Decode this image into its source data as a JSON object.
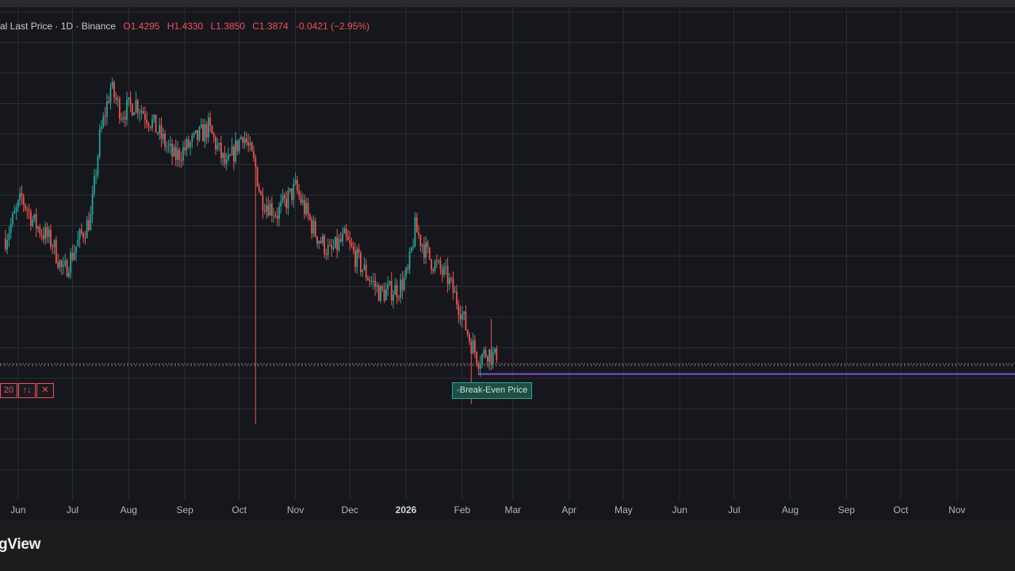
{
  "legend": {
    "title": "al Last Price · 1D · Binance",
    "open": "O1.4295",
    "high": "H1.4330",
    "low": "L1.3850",
    "close": "C1.3874",
    "change": "-0.0421 (−2.95%)"
  },
  "order_line": {
    "qty_label": "20",
    "reverse_label": "↑↓",
    "close_label": "✕",
    "label": "-Break-Even Price"
  },
  "footer": {
    "brand": "gView"
  },
  "colors": {
    "background": "#16171c",
    "up": "#26a69a",
    "down": "#ef5350",
    "order_line": "#ef4f61",
    "bep_line": "#26a69a",
    "purple_line": "#7e4fd6",
    "grid": "#2a2d35"
  },
  "chart_data": {
    "type": "candlestick",
    "interval": "1D",
    "x_tick_labels": [
      "Jun",
      "Jul",
      "Aug",
      "Sep",
      "Oct",
      "Nov",
      "Dec",
      "2026",
      "Feb",
      "Mar",
      "Apr",
      "May",
      "Jun",
      "Jul",
      "Aug",
      "Sep",
      "Oct",
      "Nov"
    ],
    "x_tick_months": [
      "2025-06",
      "2025-07",
      "2025-08",
      "2025-09",
      "2025-10",
      "2025-11",
      "2025-12",
      "2026-01",
      "2026-02",
      "2026-03",
      "2026-04",
      "2026-05",
      "2026-06",
      "2026-07",
      "2026-08",
      "2026-09",
      "2026-10",
      "2026-11"
    ],
    "bold_tick": "2026",
    "grid": true,
    "last_close": 1.3874,
    "break_even_price": 1.35,
    "lower_level": 1.25,
    "trend_points": [
      {
        "date": "2025-05-25",
        "price": 2.6
      },
      {
        "date": "2025-06-03",
        "price": 3.0
      },
      {
        "date": "2025-06-10",
        "price": 2.75
      },
      {
        "date": "2025-06-20",
        "price": 2.55
      },
      {
        "date": "2025-06-26",
        "price": 2.25
      },
      {
        "date": "2025-07-05",
        "price": 2.6
      },
      {
        "date": "2025-07-11",
        "price": 2.8
      },
      {
        "date": "2025-07-16",
        "price": 3.6
      },
      {
        "date": "2025-07-22",
        "price": 4.1
      },
      {
        "date": "2025-07-28",
        "price": 3.85
      },
      {
        "date": "2025-08-05",
        "price": 3.95
      },
      {
        "date": "2025-08-14",
        "price": 3.75
      },
      {
        "date": "2025-08-26",
        "price": 3.4
      },
      {
        "date": "2025-09-05",
        "price": 3.55
      },
      {
        "date": "2025-09-14",
        "price": 3.7
      },
      {
        "date": "2025-09-24",
        "price": 3.3
      },
      {
        "date": "2025-10-03",
        "price": 3.65
      },
      {
        "date": "2025-10-10",
        "price": 3.3
      },
      {
        "date": "2025-10-13",
        "price": 3.0
      },
      {
        "date": "2025-10-22",
        "price": 2.85
      },
      {
        "date": "2025-11-01",
        "price": 3.1
      },
      {
        "date": "2025-11-12",
        "price": 2.65
      },
      {
        "date": "2025-11-20",
        "price": 2.45
      },
      {
        "date": "2025-11-28",
        "price": 2.6
      },
      {
        "date": "2025-12-08",
        "price": 2.3
      },
      {
        "date": "2025-12-18",
        "price": 2.05
      },
      {
        "date": "2025-12-28",
        "price": 2.1
      },
      {
        "date": "2026-01-02",
        "price": 2.25
      },
      {
        "date": "2026-01-06",
        "price": 2.7
      },
      {
        "date": "2026-01-14",
        "price": 2.4
      },
      {
        "date": "2026-01-24",
        "price": 2.2
      },
      {
        "date": "2026-01-31",
        "price": 1.9
      },
      {
        "date": "2026-02-05",
        "price": 1.6
      },
      {
        "date": "2026-02-10",
        "price": 1.4
      },
      {
        "date": "2026-02-15",
        "price": 1.48
      },
      {
        "date": "2026-02-20",
        "price": 1.3874
      }
    ],
    "spikes": [
      {
        "date": "2025-10-10",
        "low": 0.75
      },
      {
        "date": "2026-02-06",
        "low": 0.95
      },
      {
        "date": "2026-02-17",
        "high": 1.8
      }
    ],
    "y_range": [
      0.0,
      4.9
    ],
    "x_range": [
      "2025-05-22",
      "2026-12-03"
    ]
  }
}
